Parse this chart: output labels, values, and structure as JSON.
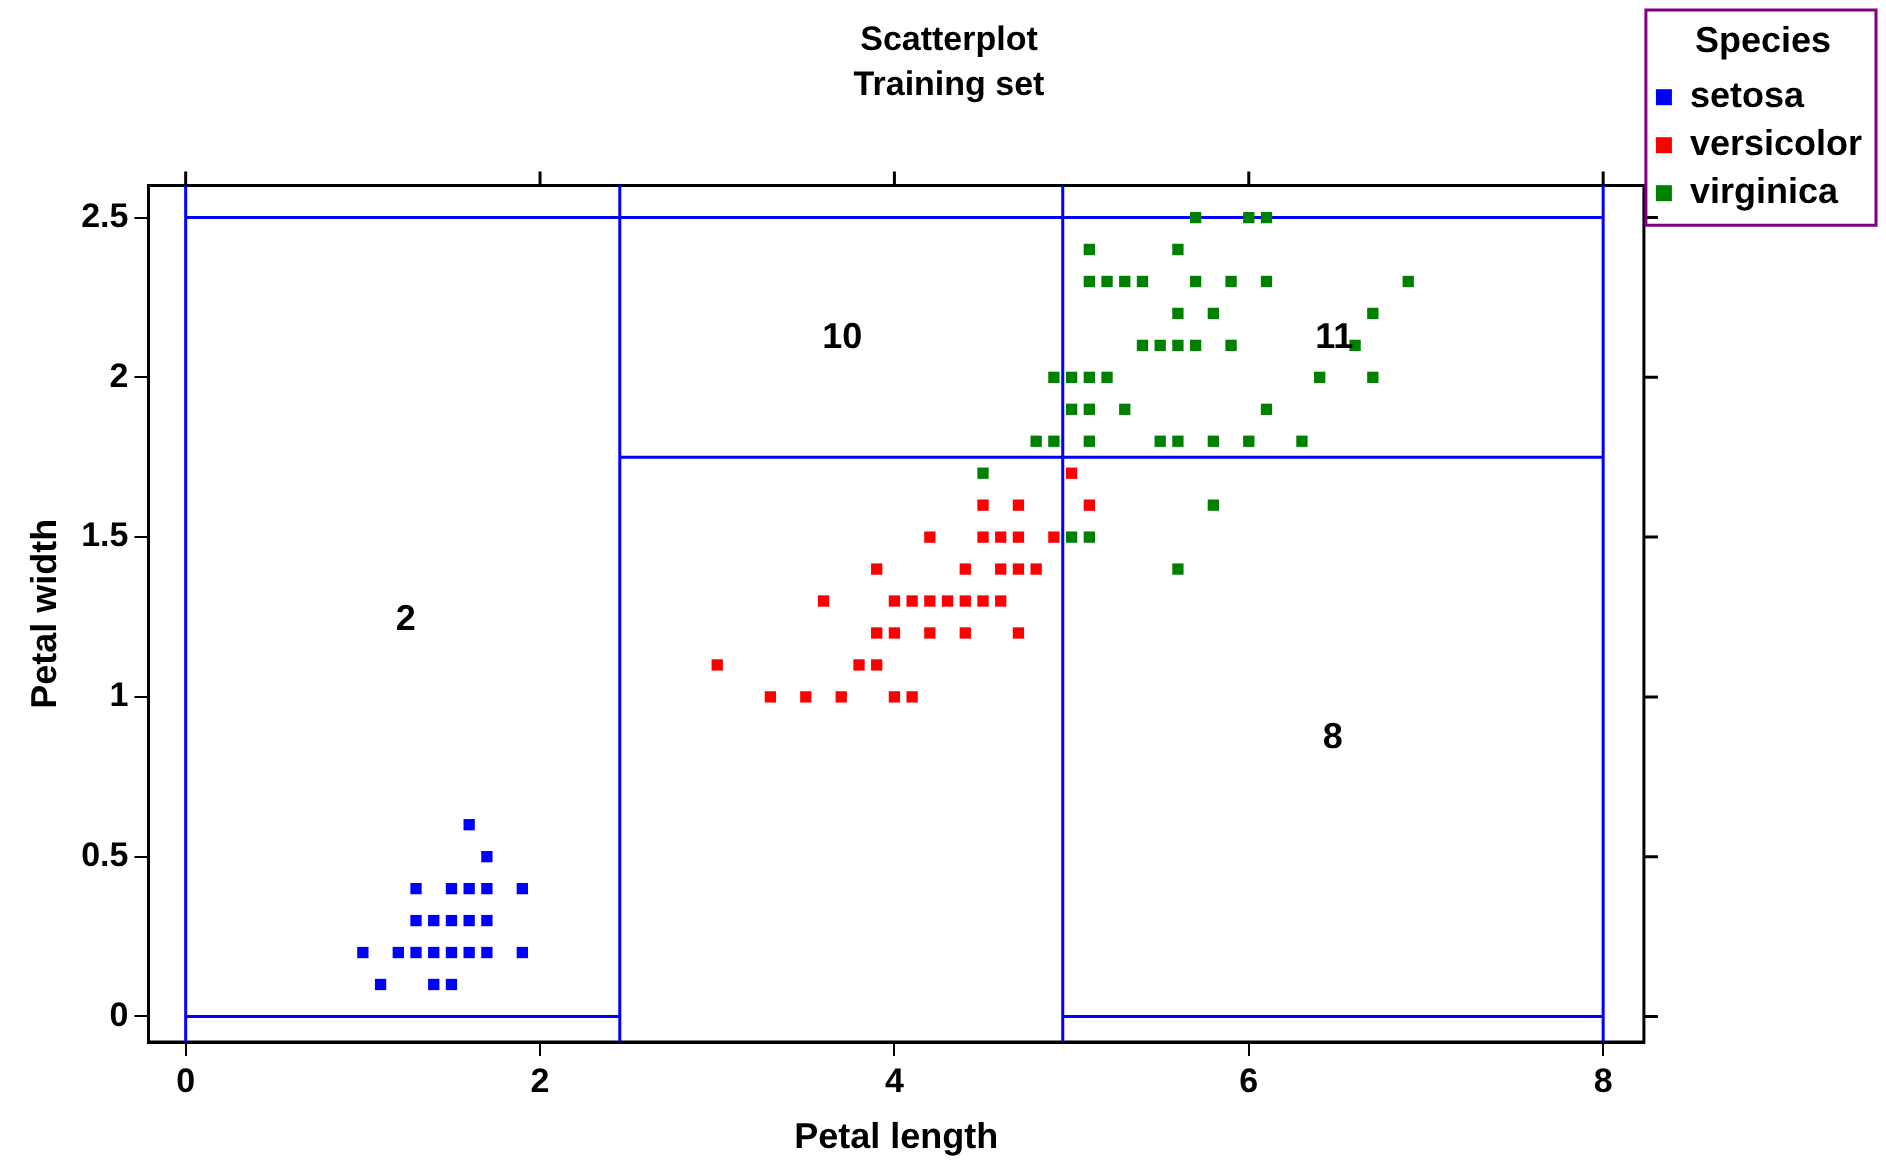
{
  "chart_data": {
    "type": "scatter",
    "title": "Scatterplot",
    "subtitle": "Training set",
    "xlabel": "Petal length",
    "ylabel": "Petal width",
    "legend_title": "Species",
    "legend": "top right",
    "marker": "square",
    "grid": false,
    "xlim": [
      -0.21,
      8.23
    ],
    "xticks": [
      0,
      2,
      4,
      6,
      8
    ],
    "ylim": [
      -0.08,
      2.6
    ],
    "yticks": [
      0,
      0.5,
      1,
      1.5,
      2,
      2.5
    ],
    "series": [
      {
        "name": "setosa",
        "color": "#0000ff",
        "x": [
          1.6,
          1.7,
          1.3,
          1.5,
          1.6,
          1.7,
          1.9,
          1.3,
          1.4,
          1.5,
          1.6,
          1.7,
          1.0,
          1.2,
          1.3,
          1.4,
          1.5,
          1.6,
          1.7,
          1.9,
          1.1,
          1.4,
          1.5
        ],
        "values": [
          0.6,
          0.5,
          0.4,
          0.4,
          0.4,
          0.4,
          0.4,
          0.3,
          0.3,
          0.3,
          0.3,
          0.3,
          0.2,
          0.2,
          0.2,
          0.2,
          0.2,
          0.2,
          0.2,
          0.2,
          0.1,
          0.1,
          0.1
        ]
      },
      {
        "name": "versicolor",
        "color": "#ff0000",
        "x": [
          5.0,
          4.5,
          4.7,
          5.1,
          4.2,
          4.5,
          4.6,
          4.7,
          4.9,
          3.9,
          4.4,
          4.6,
          4.7,
          4.8,
          3.6,
          4.0,
          4.1,
          4.2,
          4.3,
          4.4,
          4.5,
          4.6,
          3.9,
          4.0,
          4.2,
          4.4,
          4.7,
          3.0,
          3.8,
          3.9,
          3.3,
          3.5,
          3.7,
          4.0,
          4.1
        ],
        "values": [
          1.7,
          1.6,
          1.6,
          1.6,
          1.5,
          1.5,
          1.5,
          1.5,
          1.5,
          1.4,
          1.4,
          1.4,
          1.4,
          1.4,
          1.3,
          1.3,
          1.3,
          1.3,
          1.3,
          1.3,
          1.3,
          1.3,
          1.2,
          1.2,
          1.2,
          1.2,
          1.2,
          1.1,
          1.1,
          1.1,
          1.0,
          1.0,
          1.0,
          1.0,
          1.0
        ]
      },
      {
        "name": "virginica",
        "color": "#008000",
        "x": [
          5.7,
          6.0,
          6.1,
          5.1,
          5.6,
          5.1,
          5.2,
          5.3,
          5.4,
          5.7,
          5.9,
          6.1,
          6.9,
          5.6,
          5.8,
          6.7,
          5.4,
          5.5,
          5.6,
          5.7,
          5.9,
          6.6,
          4.9,
          5.0,
          5.1,
          5.2,
          6.4,
          6.7,
          5.0,
          5.1,
          5.3,
          6.1,
          4.8,
          4.9,
          5.1,
          5.5,
          5.6,
          5.8,
          6.0,
          6.3,
          4.5,
          5.8,
          5.0,
          5.1,
          5.6
        ],
        "values": [
          2.5,
          2.5,
          2.5,
          2.4,
          2.4,
          2.3,
          2.3,
          2.3,
          2.3,
          2.3,
          2.3,
          2.3,
          2.3,
          2.2,
          2.2,
          2.2,
          2.1,
          2.1,
          2.1,
          2.1,
          2.1,
          2.1,
          2.0,
          2.0,
          2.0,
          2.0,
          2.0,
          2.0,
          1.9,
          1.9,
          1.9,
          1.9,
          1.8,
          1.8,
          1.8,
          1.8,
          1.8,
          1.8,
          1.8,
          1.8,
          1.7,
          1.6,
          1.5,
          1.5,
          1.4
        ]
      },
      {
        "type": "line",
        "marker": "none",
        "color": "#0000ff",
        "x": [
          0,
          8
        ],
        "values": [
          2.5,
          2.5
        ]
      },
      {
        "type": "line",
        "marker": "none",
        "color": "#0000ff",
        "x": [
          0,
          2.45,
          3.7,
          4.95,
          8
        ],
        "values": [
          0,
          0,
          null,
          0,
          0
        ]
      },
      {
        "type": "line",
        "marker": "none",
        "color": "#0000ff",
        "x": [
          2.45,
          8
        ],
        "values": [
          1.75,
          1.75
        ]
      }
    ],
    "ref_lines": [
      {
        "axis": "x",
        "value": 0,
        "color": "#0000ff"
      },
      {
        "axis": "x",
        "value": 2.45,
        "color": "#0000ff"
      },
      {
        "axis": "x",
        "value": 4.95,
        "color": "#0000ff"
      },
      {
        "axis": "x",
        "value": 8,
        "color": "#0000ff"
      }
    ],
    "annotations": [
      "2",
      "10",
      "11",
      "8"
    ]
  }
}
